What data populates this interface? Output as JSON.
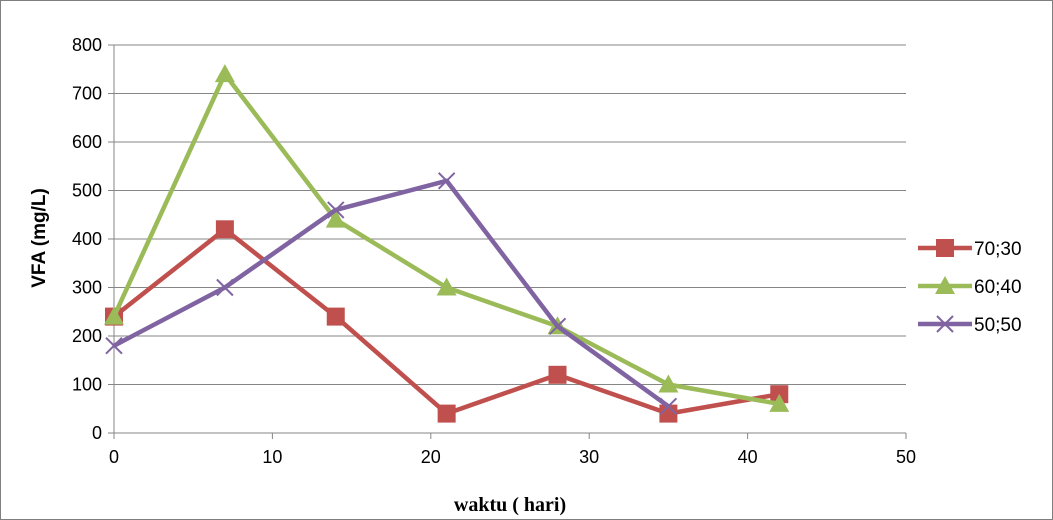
{
  "chart_data": {
    "type": "line",
    "title": "",
    "xlabel": "waktu ( hari)",
    "ylabel": "VFA (mg/L)",
    "xlim": [
      0,
      50
    ],
    "ylim": [
      0,
      800
    ],
    "xticks": [
      0,
      10,
      20,
      30,
      40,
      50
    ],
    "yticks": [
      0,
      100,
      200,
      300,
      400,
      500,
      600,
      700,
      800
    ],
    "grid": "horizontal",
    "legend_position": "right",
    "series": [
      {
        "name": "70;30",
        "color": "#c0504d",
        "marker": "square",
        "x": [
          0,
          7,
          14,
          21,
          28,
          35,
          42
        ],
        "y": [
          240,
          420,
          240,
          40,
          120,
          40,
          80
        ]
      },
      {
        "name": "60;40",
        "color": "#9bbb59",
        "marker": "triangle",
        "x": [
          0,
          7,
          14,
          21,
          28,
          35,
          42
        ],
        "y": [
          240,
          740,
          440,
          300,
          220,
          100,
          60
        ]
      },
      {
        "name": "50;50",
        "color": "#8064a2",
        "marker": "x",
        "x": [
          0,
          7,
          14,
          21,
          28,
          35
        ],
        "y": [
          180,
          300,
          460,
          520,
          220,
          55
        ]
      }
    ]
  }
}
